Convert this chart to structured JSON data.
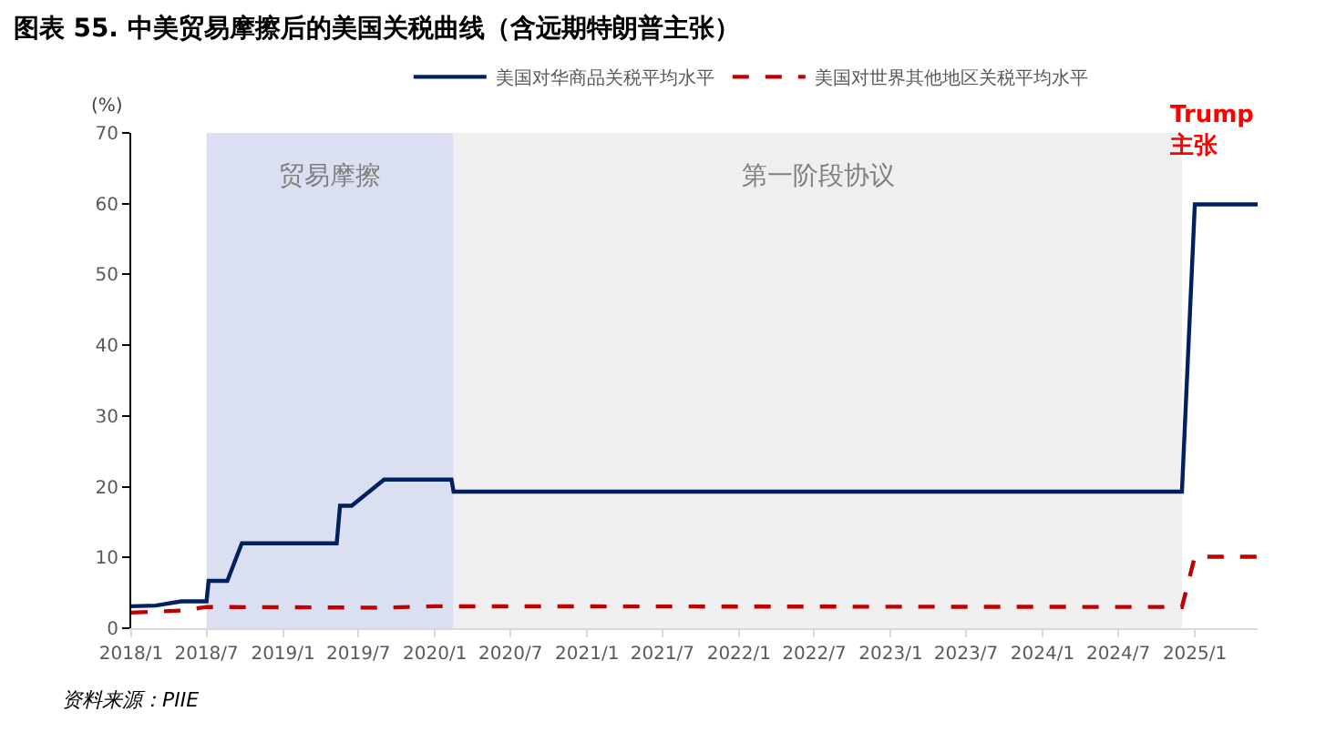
{
  "chart_data": {
    "type": "line",
    "title": "图表 55. 中美贸易摩擦后的美国关税曲线（含远期特朗普主张）",
    "ylabel": "(%)",
    "series": [
      {
        "name": "美国对华商品关税平均水平",
        "color": "#002060",
        "line_style": "solid",
        "x": [
          "2018-01-01",
          "2018-03-01",
          "2018-05-01",
          "2018-07-01",
          "2018-07-06",
          "2018-08-20",
          "2018-09-24",
          "2019-05-10",
          "2019-05-18",
          "2019-06-15",
          "2019-09-01",
          "2020-02-10",
          "2020-02-15",
          "2024-12-01",
          "2025-01-01",
          "2025-06-01"
        ],
        "values": [
          3.1,
          3.2,
          3.8,
          3.8,
          6.7,
          6.7,
          12.0,
          12.0,
          17.3,
          17.3,
          21.0,
          21.0,
          19.3,
          19.3,
          59.9,
          59.9
        ]
      },
      {
        "name": "美国对世界其他地区关税平均水平",
        "color": "#c00000",
        "line_style": "dashed",
        "x": [
          "2018-01-01",
          "2018-05-01",
          "2018-07-01",
          "2019-09-01",
          "2020-01-01",
          "2024-12-01",
          "2025-01-01",
          "2025-06-01"
        ],
        "values": [
          2.2,
          2.5,
          3.0,
          2.9,
          3.1,
          3.0,
          10.1,
          10.1
        ]
      }
    ],
    "xlim": [
      "2018-01-01",
      "2025-06-01"
    ],
    "xticks": [
      {
        "value": "2018-01-01",
        "label": "2018/1"
      },
      {
        "value": "2018-07-01",
        "label": "2018/7"
      },
      {
        "value": "2019-01-01",
        "label": "2019/1"
      },
      {
        "value": "2019-07-01",
        "label": "2019/7"
      },
      {
        "value": "2020-01-01",
        "label": "2020/1"
      },
      {
        "value": "2020-07-01",
        "label": "2020/7"
      },
      {
        "value": "2021-01-01",
        "label": "2021/1"
      },
      {
        "value": "2021-07-01",
        "label": "2021/7"
      },
      {
        "value": "2022-01-01",
        "label": "2022/1"
      },
      {
        "value": "2022-07-01",
        "label": "2022/7"
      },
      {
        "value": "2023-01-01",
        "label": "2023/1"
      },
      {
        "value": "2023-07-01",
        "label": "2023/7"
      },
      {
        "value": "2024-01-01",
        "label": "2024/1"
      },
      {
        "value": "2024-07-01",
        "label": "2024/7"
      },
      {
        "value": "2025-01-01",
        "label": "2025/1"
      }
    ],
    "ylim": [
      0,
      70
    ],
    "yticks": [
      0,
      10,
      20,
      30,
      40,
      50,
      60,
      70
    ],
    "bands": [
      {
        "axis": "x",
        "from": "2018-07-01",
        "to": "2020-02-15",
        "label": "贸易摩擦",
        "color": "#dae0f2"
      },
      {
        "axis": "x",
        "from": "2020-02-15",
        "to": "2024-12-01",
        "label": "第一阶段协议",
        "color": "#efefef"
      }
    ],
    "annotations": [
      "Trump\n主张",
      "资料来源：PIIE"
    ],
    "grid": false,
    "legend": "top",
    "marker": "none"
  }
}
